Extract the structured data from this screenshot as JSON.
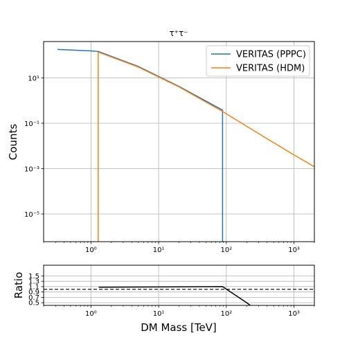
{
  "chart_data": [
    {
      "type": "line",
      "title": "τ⁺τ⁻",
      "xlabel": "",
      "ylabel": "Counts",
      "xscale": "log",
      "yscale": "log",
      "xlim": [
        0.2,
        2000
      ],
      "ylim": [
        6e-07,
        400
      ],
      "grid": true,
      "legend_position": "top-right",
      "x_tick_labels": [
        "10⁰",
        "10¹",
        "10²",
        "10³"
      ],
      "y_tick_labels": [
        "10¹",
        "10⁻¹",
        "10⁻³",
        "10⁻⁵"
      ],
      "series": [
        {
          "name": "VERITAS (PPPC)",
          "color": "#1f77b4",
          "x": [
            0.32,
            1.0,
            1.3,
            5.0,
            20.0,
            88.0,
            88.0,
            88.0
          ],
          "y": [
            180,
            155,
            145,
            32,
            4.2,
            0.38,
            0.38,
            6e-07
          ]
        },
        {
          "name": "VERITAS (HDM)",
          "color": "#ff7f0e",
          "x": [
            1.28,
            1.28,
            1.3,
            5.0,
            20.0,
            88.0,
            300.0,
            1000.0,
            2000.0
          ],
          "y": [
            6e-07,
            135,
            135,
            30,
            4.0,
            0.33,
            0.035,
            0.004,
            0.0012
          ]
        }
      ]
    },
    {
      "type": "line",
      "title": "",
      "xlabel": "DM Mass [TeV]",
      "ylabel": "Ratio",
      "xscale": "log",
      "yscale": "linear",
      "xlim": [
        0.2,
        2000
      ],
      "ylim": [
        0.4,
        1.9
      ],
      "grid": true,
      "x_tick_labels": [
        "10⁰",
        "10¹",
        "10²",
        "10³"
      ],
      "y_ticks": [
        0.5,
        0.7,
        0.9,
        1.1,
        1.3,
        1.5
      ],
      "y_tick_labels": [
        "0.5",
        "0.7",
        "0.9",
        "1.1",
        "1.3",
        "1.5"
      ],
      "reference_line": 1.0,
      "series": [
        {
          "name": "",
          "color": "#000000",
          "x": [
            1.3,
            88.0,
            200.0,
            240.0
          ],
          "y": [
            1.08,
            1.1,
            0.5,
            0.35
          ]
        }
      ]
    }
  ]
}
